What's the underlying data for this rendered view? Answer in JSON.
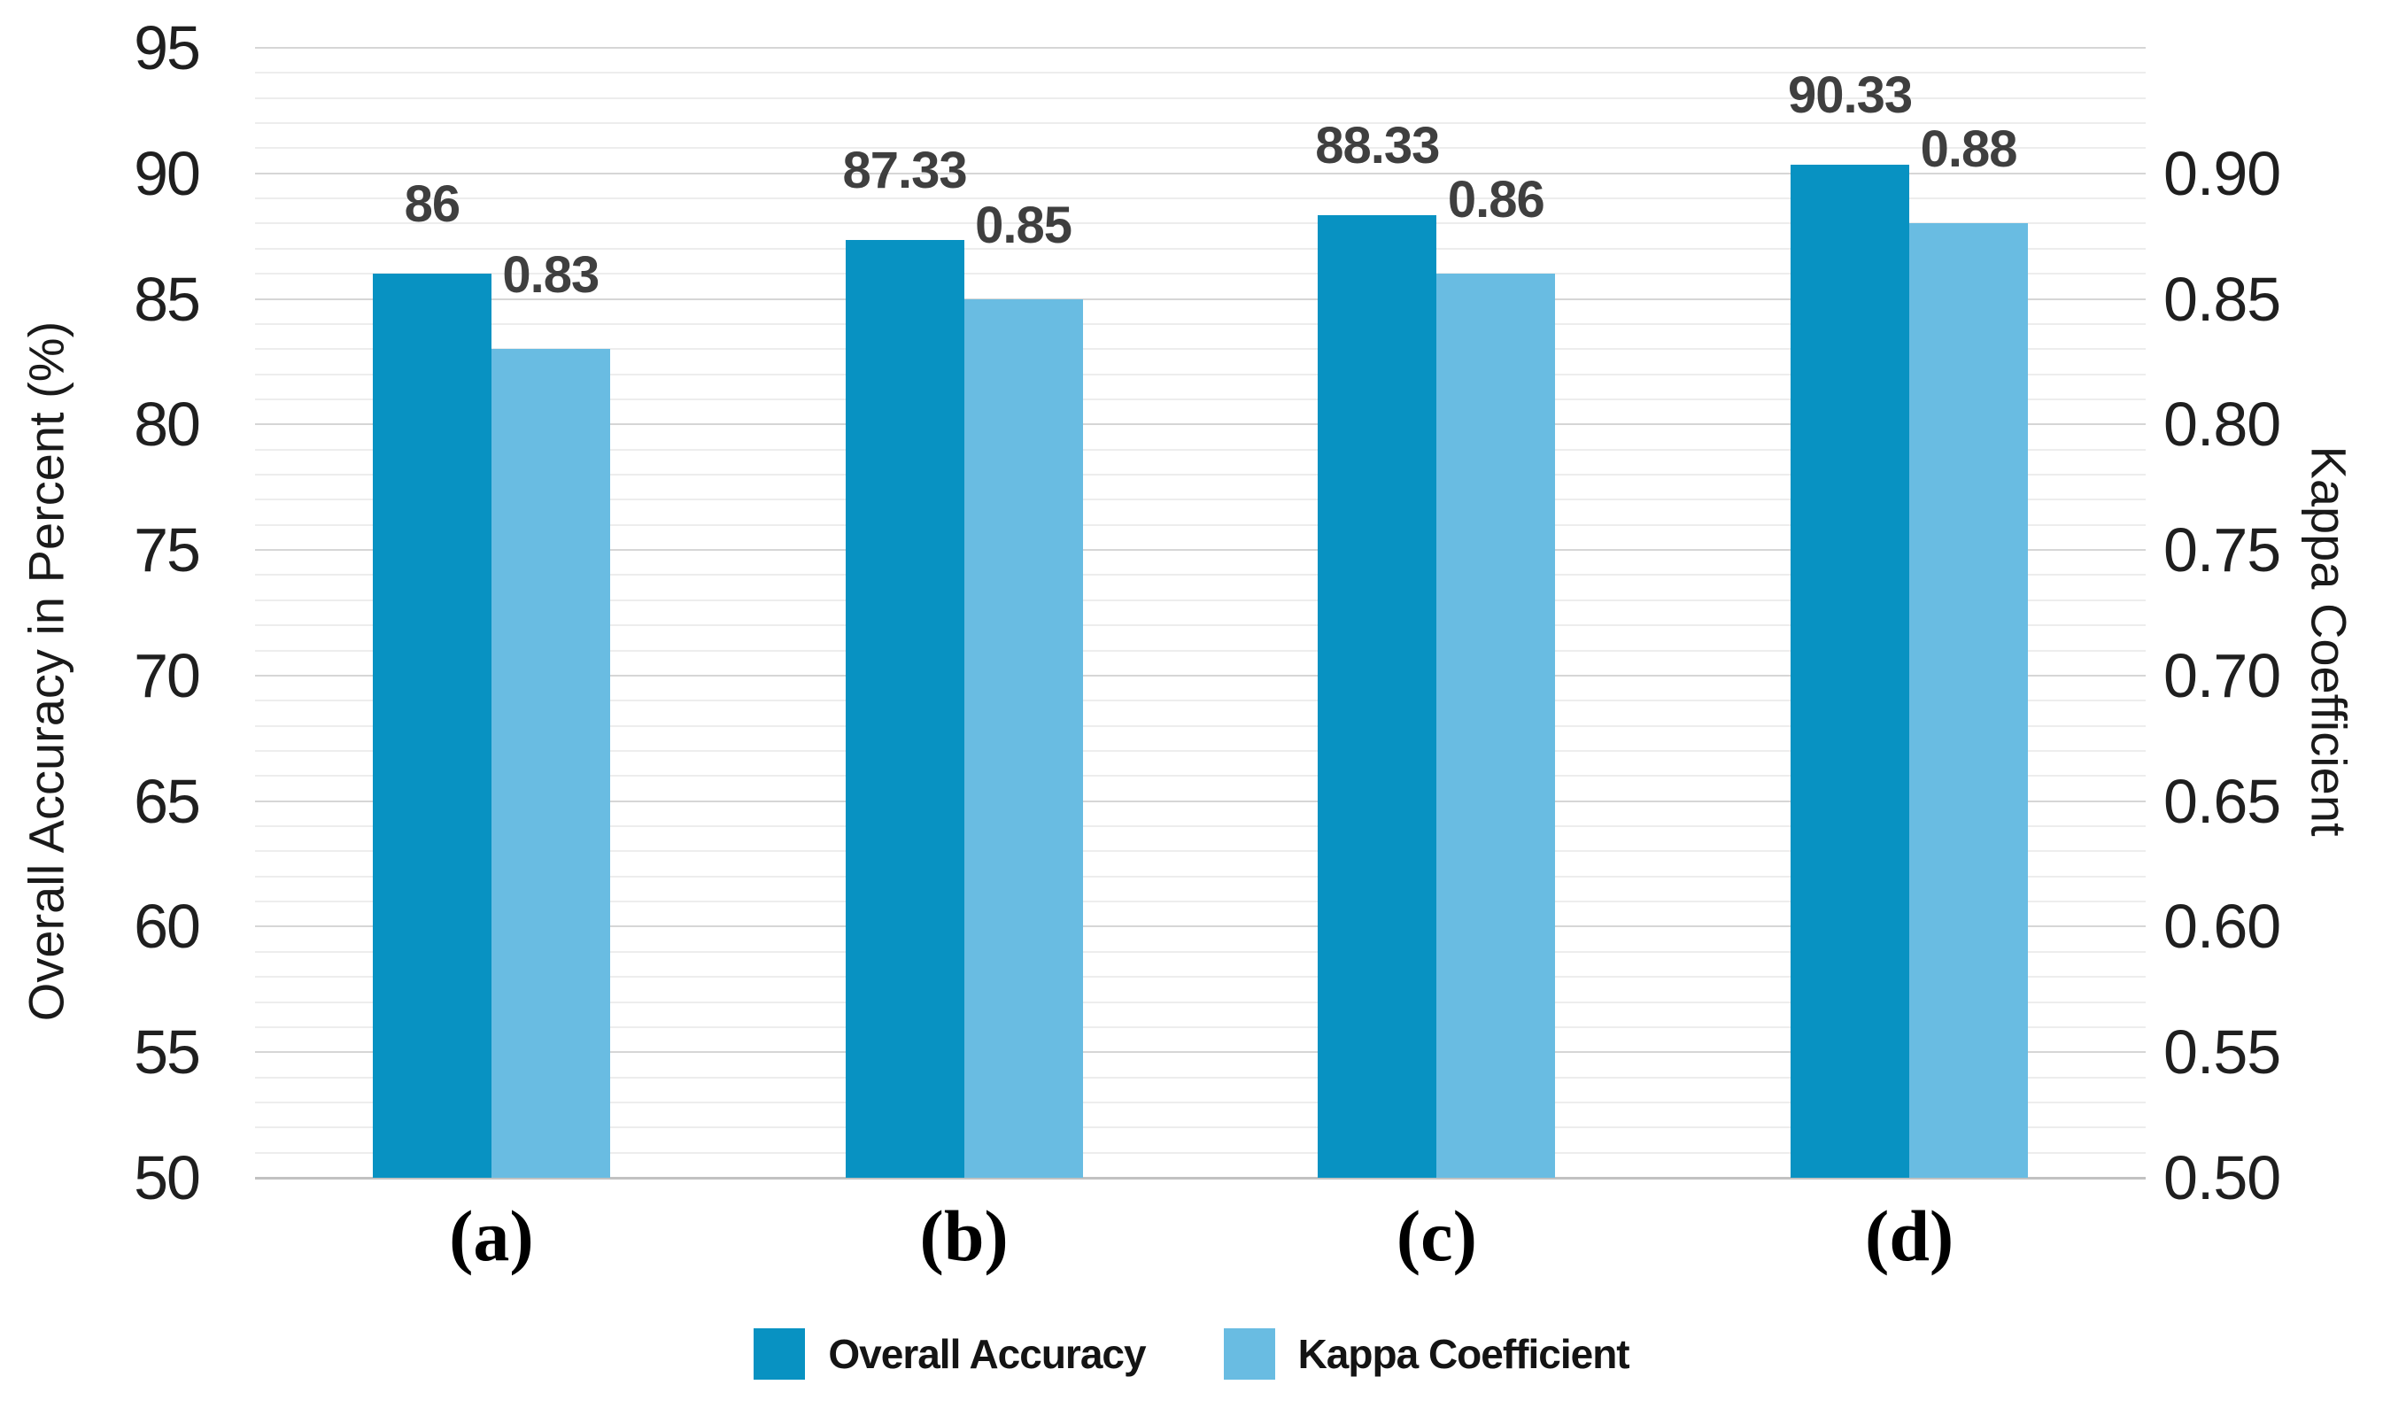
{
  "chart_data": {
    "type": "bar",
    "title": "",
    "categories": [
      "(a)",
      "(b)",
      "(c)",
      "(d)"
    ],
    "series": [
      {
        "name": "Overall Accuracy",
        "axis": "left_axis",
        "color": "#0892C2",
        "values": [
          86,
          87.33,
          88.33,
          90.33
        ],
        "labels": [
          "86",
          "87.33",
          "88.33",
          "90.33"
        ]
      },
      {
        "name": "Kappa Coefficient",
        "axis": "right_axis",
        "color": "#69BCE2",
        "values": [
          0.83,
          0.85,
          0.86,
          0.88
        ],
        "labels": [
          "0.83",
          "0.85",
          "0.86",
          "0.88"
        ]
      }
    ],
    "left_axis": {
      "title": "Overall Accuracy in Percent (%)",
      "min": 50,
      "max": 95,
      "major_step": 5,
      "minor_step": 1,
      "tick_labels": [
        "95",
        "90",
        "85",
        "80",
        "75",
        "70",
        "65",
        "60",
        "55",
        "50"
      ]
    },
    "right_axis": {
      "title": "Kappa Coefficient",
      "min": 0.5,
      "max": 0.95,
      "major_step": 0.05,
      "tick_labels": [
        "0.90",
        "0.85",
        "0.80",
        "0.75",
        "0.70",
        "0.65",
        "0.60",
        "0.55",
        "0.50"
      ]
    },
    "grid": true,
    "legend_position": "bottom",
    "style": {
      "gridline_minor_color": "#ededed",
      "gridline_major_color": "#d6d6d6",
      "baseline_color": "#c2c2c2",
      "data_label_color": "#3f3f3f",
      "tick_label_color": "#1f1f1f",
      "background": "#ffffff"
    }
  }
}
